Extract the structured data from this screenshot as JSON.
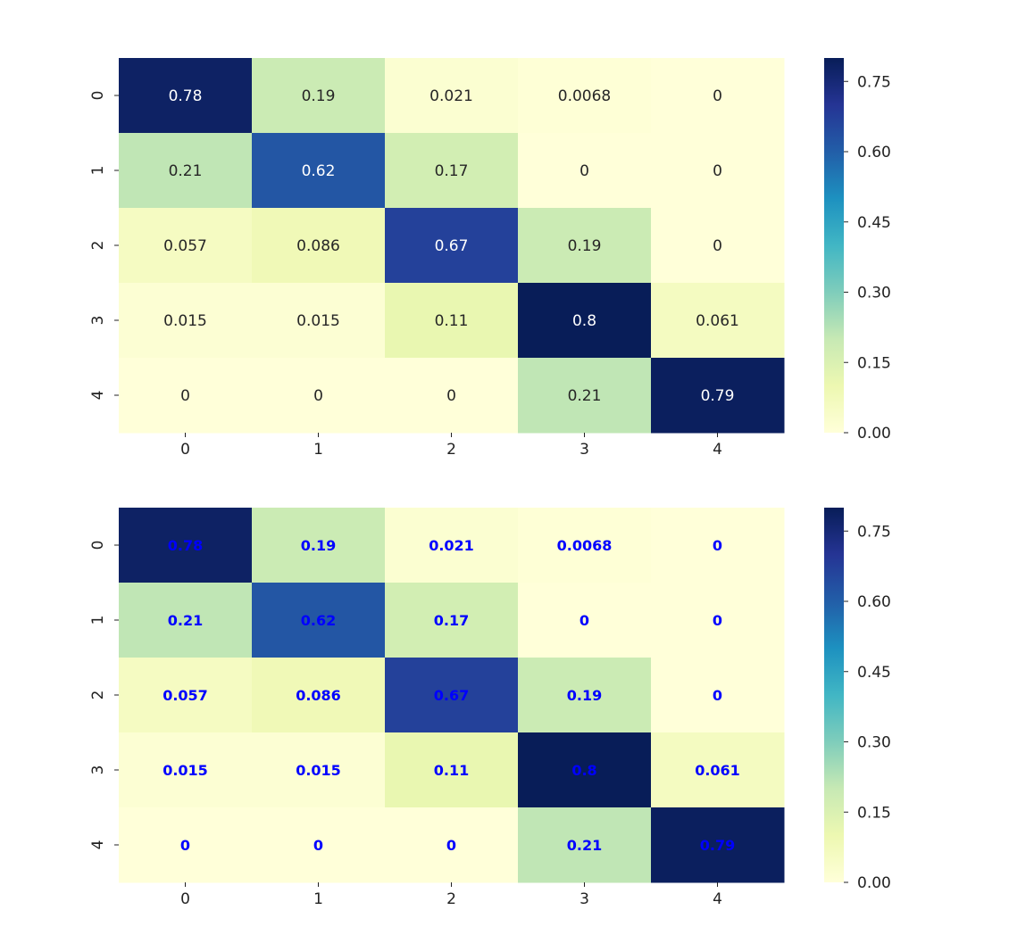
{
  "chart_data": [
    {
      "type": "heatmap",
      "x_categories": [
        "0",
        "1",
        "2",
        "3",
        "4"
      ],
      "y_categories": [
        "0",
        "1",
        "2",
        "3",
        "4"
      ],
      "values": [
        [
          0.78,
          0.19,
          0.021,
          0.0068,
          0
        ],
        [
          0.21,
          0.62,
          0.17,
          0,
          0
        ],
        [
          0.057,
          0.086,
          0.67,
          0.19,
          0
        ],
        [
          0.015,
          0.015,
          0.11,
          0.8,
          0.061
        ],
        [
          0,
          0,
          0,
          0.21,
          0.79
        ]
      ],
      "cell_labels": [
        [
          "0.78",
          "0.19",
          "0.021",
          "0.0068",
          "0"
        ],
        [
          "0.21",
          "0.62",
          "0.17",
          "0",
          "0"
        ],
        [
          "0.057",
          "0.086",
          "0.67",
          "0.19",
          "0"
        ],
        [
          "0.015",
          "0.015",
          "0.11",
          "0.8",
          "0.061"
        ],
        [
          "0",
          "0",
          "0",
          "0.21",
          "0.79"
        ]
      ],
      "annotation_style": "auto-contrast",
      "colormap": "YlGnBu",
      "vmin": 0,
      "vmax": 0.8,
      "colorbar_ticks": [
        "0.00",
        "0.15",
        "0.30",
        "0.45",
        "0.60",
        "0.75"
      ],
      "title": "",
      "xlabel": "",
      "ylabel": ""
    },
    {
      "type": "heatmap",
      "x_categories": [
        "0",
        "1",
        "2",
        "3",
        "4"
      ],
      "y_categories": [
        "0",
        "1",
        "2",
        "3",
        "4"
      ],
      "values": [
        [
          0.78,
          0.19,
          0.021,
          0.0068,
          0
        ],
        [
          0.21,
          0.62,
          0.17,
          0,
          0
        ],
        [
          0.057,
          0.086,
          0.67,
          0.19,
          0
        ],
        [
          0.015,
          0.015,
          0.11,
          0.8,
          0.061
        ],
        [
          0,
          0,
          0,
          0.21,
          0.79
        ]
      ],
      "cell_labels": [
        [
          "0.78",
          "0.19",
          "0.021",
          "0.0068",
          "0"
        ],
        [
          "0.21",
          "0.62",
          "0.17",
          "0",
          "0"
        ],
        [
          "0.057",
          "0.086",
          "0.67",
          "0.19",
          "0"
        ],
        [
          "0.015",
          "0.015",
          "0.11",
          "0.8",
          "0.061"
        ],
        [
          "0",
          "0",
          "0",
          "0.21",
          "0.79"
        ]
      ],
      "annotation_style": "bold-blue",
      "annotation_color": "#0000ff",
      "colormap": "YlGnBu",
      "vmin": 0,
      "vmax": 0.8,
      "colorbar_ticks": [
        "0.00",
        "0.15",
        "0.30",
        "0.45",
        "0.60",
        "0.75"
      ],
      "title": "",
      "xlabel": "",
      "ylabel": ""
    }
  ]
}
